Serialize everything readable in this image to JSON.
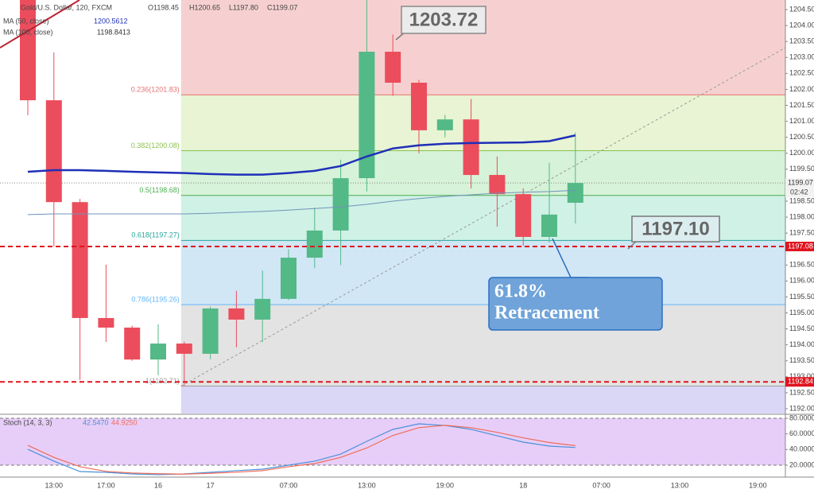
{
  "chart_data": {
    "type": "candlestick",
    "symbol": "Gold/U.S. Dollar, 120, FXCM",
    "ohlc_header": [
      "O1198.45",
      "H1200.65",
      "L1197.80",
      "C1199.07"
    ],
    "categories": [
      null,
      "13:00",
      null,
      "17:00",
      null,
      "16",
      null,
      "17",
      null,
      null,
      "07:00",
      null,
      null,
      "13:00",
      null,
      null,
      "19:00",
      null,
      null,
      "18",
      null,
      null,
      "07:00",
      null,
      null,
      "13:00",
      null,
      null,
      "19:00"
    ],
    "open": [
      1204.9,
      1201.66,
      1198.47,
      1194.84,
      1194.54,
      1193.54,
      1194.04,
      1193.72,
      1195.14,
      1194.79,
      1195.44,
      1196.73,
      1197.58,
      1199.22,
      1203.18,
      1202.21,
      1200.72,
      1201.06,
      1199.32,
      1198.72,
      1197.38,
      1198.45,
      null,
      null,
      null,
      null,
      null,
      null,
      null
    ],
    "high": [
      1205.2,
      1203.16,
      1198.57,
      1196.51,
      1194.6,
      1194.64,
      1194.1,
      1195.2,
      1195.69,
      1196.33,
      1197.0,
      1198.3,
      1199.8,
      1204.9,
      1203.72,
      1202.3,
      1201.2,
      1201.7,
      1199.9,
      1198.9,
      1199.7,
      1200.65,
      null,
      null,
      null,
      null,
      null,
      null,
      null
    ],
    "low": [
      1201.19,
      1197.08,
      1192.9,
      1194.09,
      1193.5,
      1193.05,
      1192.71,
      1193.55,
      1193.92,
      1194.09,
      1195.4,
      1196.4,
      1196.5,
      1198.8,
      1201.8,
      1200.0,
      1200.5,
      1198.9,
      1197.7,
      1197.1,
      1197.2,
      1197.8,
      null,
      null,
      null,
      null,
      null,
      null,
      null
    ],
    "close": [
      1201.66,
      1198.47,
      1194.84,
      1194.54,
      1193.54,
      1194.04,
      1193.72,
      1195.14,
      1194.79,
      1195.44,
      1196.73,
      1197.58,
      1199.22,
      1203.18,
      1202.21,
      1200.72,
      1201.06,
      1199.32,
      1198.72,
      1197.38,
      1198.08,
      1199.07,
      null,
      null,
      null,
      null,
      null,
      null,
      null
    ],
    "up_color": "#53b987",
    "down_color": "#eb4d5c",
    "series": [
      {
        "name": "MA (50, close)",
        "value_label": "1200.5612",
        "color": "#1f2fb8",
        "width": 2.5,
        "values": [
          1199.42,
          1199.47,
          1199.47,
          1199.45,
          1199.42,
          1199.4,
          1199.38,
          1199.35,
          1199.33,
          1199.33,
          1199.38,
          1199.45,
          1199.6,
          1199.9,
          1200.15,
          1200.25,
          1200.3,
          1200.32,
          1200.33,
          1200.34,
          1200.38,
          1200.56,
          null,
          null,
          null,
          null,
          null,
          null,
          null
        ]
      },
      {
        "name": "MA (100, close)",
        "value_label": "1198.8413",
        "color": "#6f93b8",
        "width": 1,
        "values": [
          1198.08,
          1198.1,
          1198.1,
          1198.1,
          1198.1,
          1198.1,
          1198.1,
          1198.12,
          1198.15,
          1198.18,
          1198.22,
          1198.27,
          1198.32,
          1198.4,
          1198.5,
          1198.58,
          1198.65,
          1198.7,
          1198.75,
          1198.78,
          1198.8,
          1198.84,
          null,
          null,
          null,
          null,
          null,
          null,
          null
        ]
      }
    ],
    "ylim": [
      1191.85,
      1204.8
    ],
    "yticks": [
      {
        "value": 1204.5,
        "label": "1204.50"
      },
      {
        "value": 1204.0,
        "label": "1204.00"
      },
      {
        "value": 1203.5,
        "label": "1203.50"
      },
      {
        "value": 1203.0,
        "label": "1203.00"
      },
      {
        "value": 1202.5,
        "label": "1202.50"
      },
      {
        "value": 1202.0,
        "label": "1202.00"
      },
      {
        "value": 1201.5,
        "label": "1201.50"
      },
      {
        "value": 1201.0,
        "label": "1201.00"
      },
      {
        "value": 1200.5,
        "label": "1200.50"
      },
      {
        "value": 1200.0,
        "label": "1200.00"
      },
      {
        "value": 1199.5,
        "label": "1199.50"
      },
      {
        "value": 1199.0,
        "label": "1199.00"
      },
      {
        "value": 1198.5,
        "label": "1198.50"
      },
      {
        "value": 1198.0,
        "label": "1198.00"
      },
      {
        "value": 1197.5,
        "label": "1197.50"
      },
      {
        "value": 1197.0,
        "label": "1197.00"
      },
      {
        "value": 1196.5,
        "label": "1196.50"
      },
      {
        "value": 1196.0,
        "label": "1196.00"
      },
      {
        "value": 1195.5,
        "label": "1195.50"
      },
      {
        "value": 1195.0,
        "label": "1195.00"
      },
      {
        "value": 1194.5,
        "label": "1194.50"
      },
      {
        "value": 1194.0,
        "label": "1194.00"
      },
      {
        "value": 1193.5,
        "label": "1193.50"
      },
      {
        "value": 1193.0,
        "label": "1193.00"
      },
      {
        "value": 1192.5,
        "label": "1192.50"
      },
      {
        "value": 1192.0,
        "label": "1192.00"
      }
    ],
    "fib": {
      "fill_above": "#f6d0d0",
      "levels": [
        {
          "price": 1201.83,
          "label": "0.236(1201.83)",
          "color": "#e57373",
          "fill": "#e8f4d3"
        },
        {
          "price": 1200.08,
          "label": "0.382(1200.08)",
          "color": "#8bc34a",
          "fill": "#d6f2d8"
        },
        {
          "price": 1198.68,
          "label": "0.5(1198.68)",
          "color": "#4caf50",
          "fill": "#d0f1e6"
        },
        {
          "price": 1197.27,
          "label": "0.618(1197.27)",
          "color": "#26a69a",
          "fill": "#d1e7f6"
        },
        {
          "price": 1195.26,
          "label": "0.786(1195.26)",
          "color": "#64b5f6",
          "fill": "#e3e3e3"
        },
        {
          "price": 1192.71,
          "label": "1(1192.71)",
          "color": "#9e9e9e",
          "fill": "#dad6f6"
        }
      ]
    },
    "levels": [
      {
        "value": 1197.08,
        "label": "1197.08",
        "color": "#e0141e"
      },
      {
        "value": 1192.84,
        "label": "1192.84",
        "color": "#e0141e"
      }
    ],
    "last_price": {
      "value": 1199.07,
      "label": "1199.07"
    },
    "countdown": "02:42",
    "annotations": {
      "high": "1203.72",
      "level": "1197.10",
      "callout": [
        "61.8%",
        "Retracement"
      ]
    },
    "stoch": {
      "name": "Stoch (14, 3, 3)",
      "ylim": [
        4.7,
        84.1
      ],
      "yticks": [
        {
          "value": 80,
          "label": "80.0000"
        },
        {
          "value": 60,
          "label": "60.0000"
        },
        {
          "value": 40,
          "label": "40.0000"
        },
        {
          "value": 20,
          "label": "20.0000"
        }
      ],
      "band_color": "#e7cef8",
      "series": [
        {
          "name": "%K",
          "value_label": "42.5470",
          "color": "#4a90d9",
          "values": [
            40.3,
            25.1,
            11.8,
            10.8,
            8.8,
            7.8,
            8.8,
            10.8,
            12.9,
            14.9,
            20,
            25.1,
            34.2,
            50.5,
            65.8,
            72.9,
            70.8,
            65.8,
            57.6,
            49.5,
            44.4,
            42.55,
            null,
            null,
            null,
            null,
            null,
            null,
            null
          ]
        },
        {
          "name": "%D",
          "value_label": "44.9250",
          "color": "#ef6c5a",
          "values": [
            45.4,
            30,
            18,
            12,
            10,
            9,
            8.5,
            9.5,
            11,
            13,
            18,
            22,
            30,
            42,
            58,
            68,
            71,
            68,
            62,
            55,
            49,
            44.93,
            null,
            null,
            null,
            null,
            null,
            null,
            null
          ]
        }
      ]
    }
  }
}
